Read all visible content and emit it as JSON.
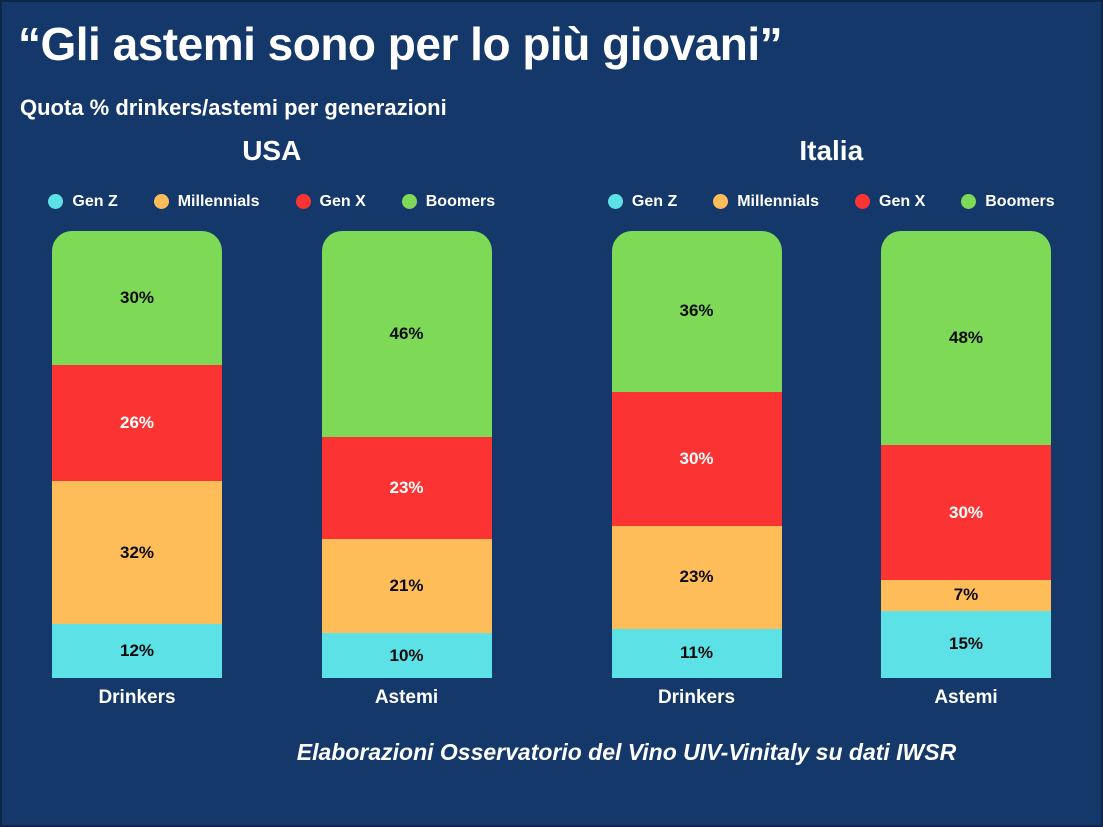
{
  "page": {
    "title": "“Gli astemi sono per lo più giovani”",
    "subtitle": "Quota % drinkers/astemi per generazioni",
    "footer": "Elaborazioni Osservatorio del Vino UIV-Vinitaly su dati IWSR",
    "background_color": "#15386b"
  },
  "legend": [
    {
      "label": "Gen Z",
      "color": "#5ce1e6"
    },
    {
      "label": "Millennials",
      "color": "#ffbd59"
    },
    {
      "label": "Gen X",
      "color": "#fb3433"
    },
    {
      "label": "Boomers",
      "color": "#7ed957"
    }
  ],
  "chart_data": {
    "type": "bar",
    "stacked": true,
    "percent_total": 100,
    "unit": "%",
    "stack_order_bottom_to_top": [
      "Gen Z",
      "Millennials",
      "Gen X",
      "Boomers"
    ],
    "groups": [
      {
        "title": "USA",
        "categories": [
          "Drinkers",
          "Astemi"
        ],
        "series": [
          {
            "name": "Gen Z",
            "color": "#5ce1e6",
            "label_color": "#0b0b0b",
            "values": [
              12,
              10
            ]
          },
          {
            "name": "Millennials",
            "color": "#ffbd59",
            "label_color": "#0b0b0b",
            "values": [
              32,
              21
            ]
          },
          {
            "name": "Gen X",
            "color": "#fb3433",
            "label_color": "#ffffff",
            "values": [
              26,
              23
            ]
          },
          {
            "name": "Boomers",
            "color": "#7ed957",
            "label_color": "#0b0b0b",
            "values": [
              30,
              46
            ]
          }
        ]
      },
      {
        "title": "Italia",
        "categories": [
          "Drinkers",
          "Astemi"
        ],
        "series": [
          {
            "name": "Gen Z",
            "color": "#5ce1e6",
            "label_color": "#0b0b0b",
            "values": [
              11,
              15
            ]
          },
          {
            "name": "Millennials",
            "color": "#ffbd59",
            "label_color": "#0b0b0b",
            "values": [
              23,
              7
            ]
          },
          {
            "name": "Gen X",
            "color": "#fb3433",
            "label_color": "#ffffff",
            "values": [
              30,
              30
            ]
          },
          {
            "name": "Boomers",
            "color": "#7ed957",
            "label_color": "#0b0b0b",
            "values": [
              36,
              48
            ]
          }
        ]
      }
    ]
  }
}
